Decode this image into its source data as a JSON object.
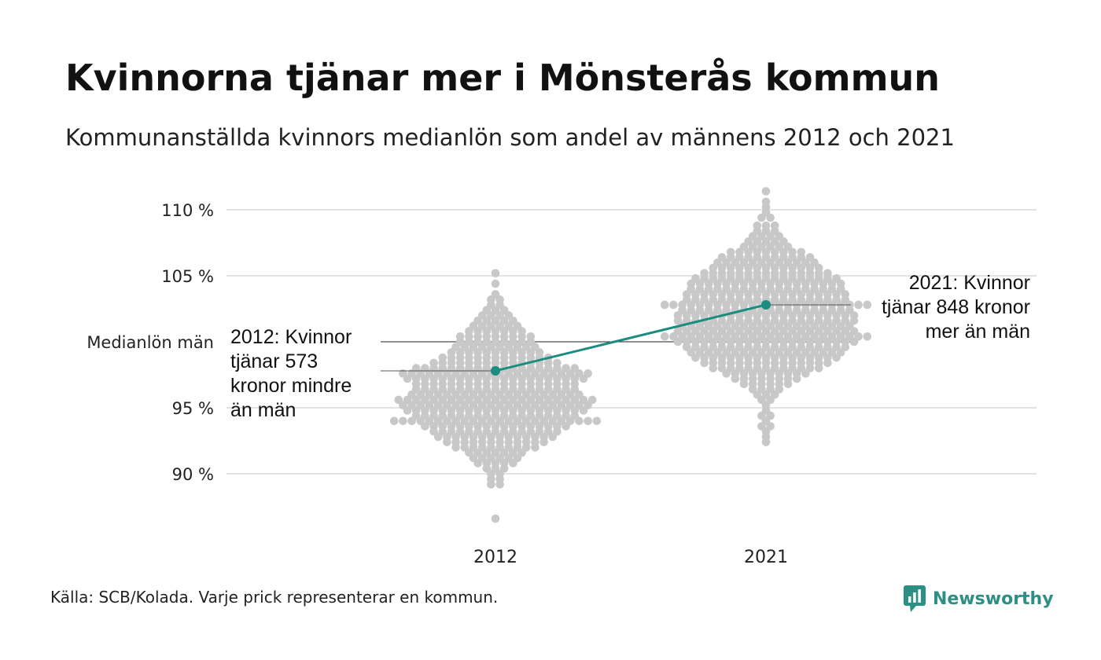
{
  "title": "Kvinnorna tjänar mer i Mönsterås kommun",
  "subtitle": "Kommunanställda kvinnors medianlön som andel av männens 2012 och 2021",
  "source": "Källa: SCB/Kolada. Varje prick representerar en kommun.",
  "brand": {
    "name": "Newsworthy",
    "icon": "bar-chart-speech-icon",
    "color": "#2c8f83"
  },
  "colors": {
    "dots": "#c8c8c8",
    "highlight": "#1a8c80",
    "grid": "#e3e3e3",
    "baseline": "#222222"
  },
  "chart_data": {
    "type": "scatter",
    "subtype": "beeswarm",
    "categories": [
      "2012",
      "2021"
    ],
    "y_ticks": [
      {
        "value": 90,
        "label": "90 %"
      },
      {
        "value": 95,
        "label": "95 %"
      },
      {
        "value": 100,
        "label": "Medianlön män"
      },
      {
        "value": 105,
        "label": "105 %"
      },
      {
        "value": 110,
        "label": "110 %"
      }
    ],
    "ylim": [
      85,
      112
    ],
    "grid": true,
    "highlight": {
      "values": [
        97.8,
        102.8
      ],
      "annotations": [
        {
          "category": "2012",
          "lines": [
            "2012: Kvinnor",
            "tjänar 573",
            "kronor mindre",
            "än män"
          ]
        },
        {
          "category": "2021",
          "lines": [
            "2021: Kvinnor",
            "tjänar 848 kronor",
            "mer än män"
          ]
        }
      ]
    },
    "distributions": [
      {
        "category": "2012",
        "bins": [
          {
            "y": 105.2,
            "n": 1
          },
          {
            "y": 104.4,
            "n": 1
          },
          {
            "y": 103.6,
            "n": 1
          },
          {
            "y": 103.2,
            "n": 2
          },
          {
            "y": 102.8,
            "n": 2
          },
          {
            "y": 102.4,
            "n": 3
          },
          {
            "y": 102.0,
            "n": 4
          },
          {
            "y": 101.6,
            "n": 5
          },
          {
            "y": 101.2,
            "n": 6
          },
          {
            "y": 100.8,
            "n": 7
          },
          {
            "y": 100.4,
            "n": 9
          },
          {
            "y": 100.0,
            "n": 9
          },
          {
            "y": 99.6,
            "n": 10
          },
          {
            "y": 99.2,
            "n": 11
          },
          {
            "y": 98.8,
            "n": 13
          },
          {
            "y": 98.4,
            "n": 15
          },
          {
            "y": 98.0,
            "n": 19
          },
          {
            "y": 97.6,
            "n": 22
          },
          {
            "y": 97.2,
            "n": 21
          },
          {
            "y": 96.8,
            "n": 19
          },
          {
            "y": 96.4,
            "n": 19
          },
          {
            "y": 96.0,
            "n": 20
          },
          {
            "y": 95.6,
            "n": 23
          },
          {
            "y": 95.2,
            "n": 22
          },
          {
            "y": 94.8,
            "n": 21
          },
          {
            "y": 94.4,
            "n": 19
          },
          {
            "y": 94.0,
            "n": 24
          },
          {
            "y": 93.6,
            "n": 17
          },
          {
            "y": 93.2,
            "n": 15
          },
          {
            "y": 92.8,
            "n": 14
          },
          {
            "y": 92.4,
            "n": 12
          },
          {
            "y": 92.0,
            "n": 10
          },
          {
            "y": 91.6,
            "n": 7
          },
          {
            "y": 91.2,
            "n": 6
          },
          {
            "y": 90.8,
            "n": 5
          },
          {
            "y": 90.4,
            "n": 3
          },
          {
            "y": 90.0,
            "n": 2
          },
          {
            "y": 89.6,
            "n": 2
          },
          {
            "y": 89.2,
            "n": 2
          },
          {
            "y": 86.6,
            "n": 1
          }
        ]
      },
      {
        "category": "2021",
        "bins": [
          {
            "y": 111.4,
            "n": 1
          },
          {
            "y": 110.6,
            "n": 1
          },
          {
            "y": 110.2,
            "n": 1
          },
          {
            "y": 109.8,
            "n": 1
          },
          {
            "y": 109.4,
            "n": 2
          },
          {
            "y": 108.8,
            "n": 3
          },
          {
            "y": 108.4,
            "n": 3
          },
          {
            "y": 108.0,
            "n": 4
          },
          {
            "y": 107.6,
            "n": 5
          },
          {
            "y": 107.2,
            "n": 6
          },
          {
            "y": 106.8,
            "n": 9
          },
          {
            "y": 106.4,
            "n": 11
          },
          {
            "y": 106.0,
            "n": 12
          },
          {
            "y": 105.6,
            "n": 13
          },
          {
            "y": 105.2,
            "n": 15
          },
          {
            "y": 104.8,
            "n": 17
          },
          {
            "y": 104.4,
            "n": 18
          },
          {
            "y": 104.0,
            "n": 18
          },
          {
            "y": 103.6,
            "n": 19
          },
          {
            "y": 103.2,
            "n": 19
          },
          {
            "y": 102.8,
            "n": 24
          },
          {
            "y": 102.4,
            "n": 20
          },
          {
            "y": 102.0,
            "n": 21
          },
          {
            "y": 101.6,
            "n": 21
          },
          {
            "y": 101.2,
            "n": 20
          },
          {
            "y": 100.8,
            "n": 21
          },
          {
            "y": 100.4,
            "n": 24
          },
          {
            "y": 100.0,
            "n": 21
          },
          {
            "y": 99.6,
            "n": 19
          },
          {
            "y": 99.2,
            "n": 18
          },
          {
            "y": 98.8,
            "n": 17
          },
          {
            "y": 98.4,
            "n": 15
          },
          {
            "y": 98.0,
            "n": 13
          },
          {
            "y": 97.6,
            "n": 10
          },
          {
            "y": 97.2,
            "n": 8
          },
          {
            "y": 96.8,
            "n": 6
          },
          {
            "y": 96.4,
            "n": 4
          },
          {
            "y": 96.0,
            "n": 3
          },
          {
            "y": 95.6,
            "n": 2
          },
          {
            "y": 95.2,
            "n": 1
          },
          {
            "y": 94.8,
            "n": 1
          },
          {
            "y": 94.4,
            "n": 2
          },
          {
            "y": 94.0,
            "n": 1
          },
          {
            "y": 93.6,
            "n": 2
          },
          {
            "y": 93.2,
            "n": 1
          },
          {
            "y": 92.8,
            "n": 1
          },
          {
            "y": 92.4,
            "n": 1
          }
        ]
      }
    ]
  }
}
